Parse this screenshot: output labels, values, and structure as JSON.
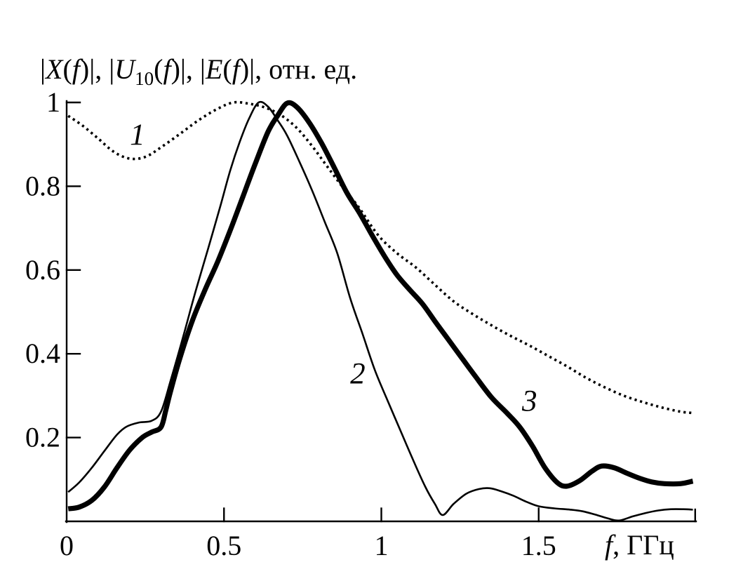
{
  "figure": {
    "background": "#ffffff",
    "ink_color": "#000000",
    "title_text": "|X(f)|, |U10(f)|, |E(f)|, отн. ед.",
    "title_segments": [
      {
        "t": "|",
        "s": "n"
      },
      {
        "t": "X",
        "s": "i"
      },
      {
        "t": "(",
        "s": "n"
      },
      {
        "t": "f",
        "s": "i"
      },
      {
        "t": ")|, |",
        "s": "n"
      },
      {
        "t": "U",
        "s": "i"
      },
      {
        "t": "10",
        "s": "sub"
      },
      {
        "t": "(",
        "s": "n"
      },
      {
        "t": "f",
        "s": "i"
      },
      {
        "t": ")|, |",
        "s": "n"
      },
      {
        "t": "E",
        "s": "i"
      },
      {
        "t": "(",
        "s": "n"
      },
      {
        "t": "f",
        "s": "i"
      },
      {
        "t": ")|, отн. ед.",
        "s": "n"
      }
    ],
    "xlabel_text": "f, ГГц",
    "xlabel_segments": [
      {
        "t": "f",
        "s": "i"
      },
      {
        "t": ", ГГц",
        "s": "n"
      }
    ]
  },
  "chart_data": {
    "type": "line",
    "title": "|X(f)|, |U10(f)|, |E(f)|, отн. ед.",
    "xlabel": "f, ГГц",
    "ylabel": "отн. ед.",
    "xlim": [
      0,
      2.0
    ],
    "ylim": [
      0,
      1.0
    ],
    "grid": false,
    "legend_position": "none",
    "x_ticks": [
      {
        "value": 0,
        "label": "0"
      },
      {
        "value": 0.5,
        "label": "0.5"
      },
      {
        "value": 1,
        "label": "1"
      },
      {
        "value": 1.5,
        "label": "1.5"
      }
    ],
    "x_end_tick": 2.0,
    "y_ticks": [
      {
        "value": 1,
        "label": "1"
      },
      {
        "value": 0.8,
        "label": "0.8"
      },
      {
        "value": 0.6,
        "label": "0.6"
      },
      {
        "value": 0.4,
        "label": "0.4"
      },
      {
        "value": 0.2,
        "label": "0.2"
      }
    ],
    "series": [
      {
        "name": "|X(f)|",
        "label": "1",
        "style": "dotted",
        "label_at": [
          0.225,
          0.923
        ],
        "points": [
          [
            0.005,
            0.968
          ],
          [
            0.05,
            0.945
          ],
          [
            0.1,
            0.914
          ],
          [
            0.15,
            0.882
          ],
          [
            0.2,
            0.866
          ],
          [
            0.25,
            0.87
          ],
          [
            0.3,
            0.893
          ],
          [
            0.36,
            0.925
          ],
          [
            0.42,
            0.958
          ],
          [
            0.48,
            0.985
          ],
          [
            0.53,
            1.0
          ],
          [
            0.58,
            0.997
          ],
          [
            0.63,
            0.988
          ],
          [
            0.68,
            0.97
          ],
          [
            0.73,
            0.94
          ],
          [
            0.78,
            0.896
          ],
          [
            0.83,
            0.845
          ],
          [
            0.88,
            0.795
          ],
          [
            0.93,
            0.748
          ],
          [
            0.99,
            0.683
          ],
          [
            1.05,
            0.64
          ],
          [
            1.11,
            0.606
          ],
          [
            1.17,
            0.565
          ],
          [
            1.23,
            0.525
          ],
          [
            1.29,
            0.495
          ],
          [
            1.35,
            0.468
          ],
          [
            1.41,
            0.443
          ],
          [
            1.47,
            0.42
          ],
          [
            1.53,
            0.395
          ],
          [
            1.59,
            0.37
          ],
          [
            1.65,
            0.343
          ],
          [
            1.71,
            0.32
          ],
          [
            1.77,
            0.3
          ],
          [
            1.83,
            0.285
          ],
          [
            1.89,
            0.272
          ],
          [
            1.95,
            0.262
          ],
          [
            1.985,
            0.259
          ]
        ]
      },
      {
        "name": "|U10(f)|",
        "label": "2",
        "style": "thin",
        "label_at": [
          0.925,
          0.353
        ],
        "points": [
          [
            0.005,
            0.07
          ],
          [
            0.04,
            0.093
          ],
          [
            0.08,
            0.128
          ],
          [
            0.12,
            0.168
          ],
          [
            0.16,
            0.207
          ],
          [
            0.19,
            0.226
          ],
          [
            0.23,
            0.236
          ],
          [
            0.27,
            0.24
          ],
          [
            0.3,
            0.262
          ],
          [
            0.33,
            0.335
          ],
          [
            0.37,
            0.44
          ],
          [
            0.41,
            0.55
          ],
          [
            0.45,
            0.652
          ],
          [
            0.49,
            0.757
          ],
          [
            0.52,
            0.838
          ],
          [
            0.55,
            0.906
          ],
          [
            0.58,
            0.962
          ],
          [
            0.61,
            1.0
          ],
          [
            0.64,
            0.99
          ],
          [
            0.67,
            0.958
          ],
          [
            0.7,
            0.922
          ],
          [
            0.74,
            0.858
          ],
          [
            0.78,
            0.79
          ],
          [
            0.82,
            0.715
          ],
          [
            0.86,
            0.64
          ],
          [
            0.9,
            0.535
          ],
          [
            0.94,
            0.448
          ],
          [
            0.98,
            0.36
          ],
          [
            1.02,
            0.288
          ],
          [
            1.06,
            0.218
          ],
          [
            1.1,
            0.148
          ],
          [
            1.14,
            0.082
          ],
          [
            1.17,
            0.042
          ],
          [
            1.195,
            0.015
          ],
          [
            1.23,
            0.042
          ],
          [
            1.27,
            0.066
          ],
          [
            1.31,
            0.077
          ],
          [
            1.345,
            0.079
          ],
          [
            1.38,
            0.072
          ],
          [
            1.42,
            0.061
          ],
          [
            1.46,
            0.047
          ],
          [
            1.5,
            0.036
          ],
          [
            1.55,
            0.031
          ],
          [
            1.6,
            0.028
          ],
          [
            1.64,
            0.024
          ],
          [
            1.68,
            0.016
          ],
          [
            1.72,
            0.007
          ],
          [
            1.755,
            0.002
          ],
          [
            1.8,
            0.012
          ],
          [
            1.84,
            0.02
          ],
          [
            1.88,
            0.026
          ],
          [
            1.92,
            0.029
          ],
          [
            1.96,
            0.029
          ],
          [
            1.99,
            0.028
          ]
        ]
      },
      {
        "name": "|E(f)|",
        "label": "3",
        "style": "thick",
        "label_at": [
          1.471,
          0.287
        ],
        "points": [
          [
            0.005,
            0.03
          ],
          [
            0.04,
            0.034
          ],
          [
            0.08,
            0.05
          ],
          [
            0.12,
            0.082
          ],
          [
            0.16,
            0.128
          ],
          [
            0.2,
            0.17
          ],
          [
            0.24,
            0.2
          ],
          [
            0.27,
            0.213
          ],
          [
            0.3,
            0.225
          ],
          [
            0.315,
            0.265
          ],
          [
            0.33,
            0.31
          ],
          [
            0.36,
            0.39
          ],
          [
            0.4,
            0.48
          ],
          [
            0.44,
            0.553
          ],
          [
            0.48,
            0.62
          ],
          [
            0.52,
            0.695
          ],
          [
            0.56,
            0.775
          ],
          [
            0.6,
            0.855
          ],
          [
            0.64,
            0.93
          ],
          [
            0.67,
            0.968
          ],
          [
            0.7,
            0.998
          ],
          [
            0.73,
            0.99
          ],
          [
            0.77,
            0.953
          ],
          [
            0.81,
            0.903
          ],
          [
            0.85,
            0.845
          ],
          [
            0.89,
            0.785
          ],
          [
            0.93,
            0.737
          ],
          [
            0.97,
            0.684
          ],
          [
            1.01,
            0.633
          ],
          [
            1.05,
            0.588
          ],
          [
            1.09,
            0.553
          ],
          [
            1.13,
            0.52
          ],
          [
            1.17,
            0.478
          ],
          [
            1.21,
            0.437
          ],
          [
            1.25,
            0.396
          ],
          [
            1.3,
            0.345
          ],
          [
            1.35,
            0.296
          ],
          [
            1.4,
            0.258
          ],
          [
            1.44,
            0.225
          ],
          [
            1.48,
            0.18
          ],
          [
            1.52,
            0.128
          ],
          [
            1.56,
            0.092
          ],
          [
            1.59,
            0.084
          ],
          [
            1.63,
            0.097
          ],
          [
            1.67,
            0.12
          ],
          [
            1.7,
            0.132
          ],
          [
            1.74,
            0.128
          ],
          [
            1.78,
            0.115
          ],
          [
            1.82,
            0.103
          ],
          [
            1.86,
            0.094
          ],
          [
            1.9,
            0.09
          ],
          [
            1.95,
            0.09
          ],
          [
            1.99,
            0.096
          ]
        ]
      }
    ]
  }
}
